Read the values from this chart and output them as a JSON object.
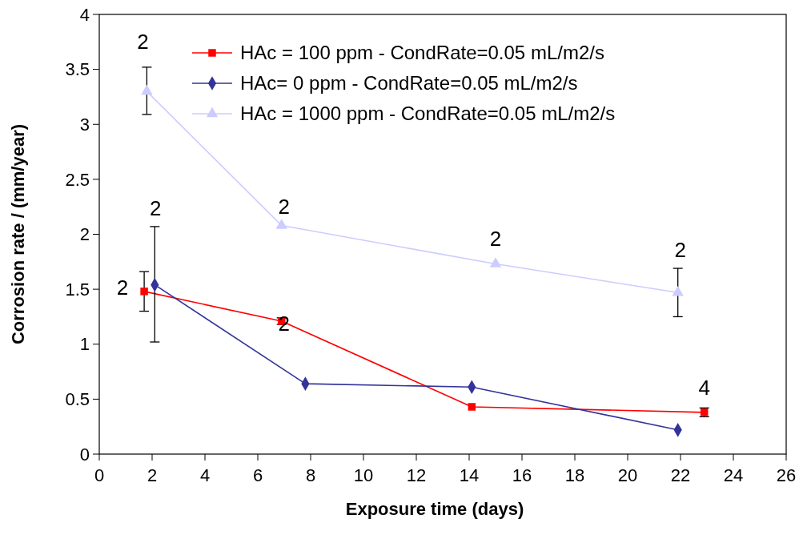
{
  "chart_data": {
    "type": "line",
    "xlabel": "Exposure time (days)",
    "ylabel": "Corrosion rate / (mm/year)",
    "xlim": [
      0,
      26
    ],
    "xticks": [
      0,
      2,
      4,
      6,
      8,
      10,
      12,
      14,
      16,
      18,
      20,
      22,
      24,
      26
    ],
    "ylim": [
      0,
      4
    ],
    "yticks": [
      0,
      0.5,
      1,
      1.5,
      2,
      2.5,
      3,
      3.5,
      4
    ],
    "grid": false,
    "legend": "top",
    "series": [
      {
        "name": "HAc = 100 ppm - CondRate=0.05 mL/m2/s",
        "color": "#ff0000",
        "marker": "square",
        "x": [
          1.7,
          6.9,
          14.1,
          22.9
        ],
        "values": [
          1.48,
          1.21,
          0.43,
          0.38
        ],
        "errors": [
          [
            1.3,
            1.66
          ],
          0.03,
          null,
          0.04
        ]
      },
      {
        "name": "HAc= 0 ppm - CondRate=0.05 mL/m2/s",
        "color": "#333399",
        "marker": "diamond",
        "x": [
          2.1,
          7.8,
          14.1,
          21.9
        ],
        "values": [
          1.54,
          0.64,
          0.61,
          0.22
        ],
        "errors": [
          [
            1.02,
            2.07
          ],
          null,
          null,
          null
        ]
      },
      {
        "name": "HAc = 1000 ppm - CondRate=0.05 mL/m2/s",
        "color": "#ccccff",
        "marker": "triangle",
        "x": [
          1.8,
          6.9,
          15,
          21.9
        ],
        "values": [
          3.3,
          2.08,
          1.73,
          1.47
        ],
        "errors": [
          [
            3.09,
            3.52
          ],
          null,
          null,
          [
            1.25,
            1.69
          ]
        ]
      }
    ],
    "annotations": [
      {
        "text": "2",
        "x": 1.8,
        "y": 3.3
      },
      {
        "text": "2",
        "x": 2.1,
        "y": 2.07
      },
      {
        "text": "2",
        "x": 1.7,
        "y": 1.48
      },
      {
        "text": "2",
        "x": 6.9,
        "y": 2.08
      },
      {
        "text": "2",
        "x": 6.9,
        "y": 1.21
      },
      {
        "text": "2",
        "x": 15,
        "y": 1.73
      },
      {
        "text": "2",
        "x": 21.9,
        "y": 1.47
      },
      {
        "text": "4",
        "x": 22.9,
        "y": 0.38
      }
    ]
  }
}
